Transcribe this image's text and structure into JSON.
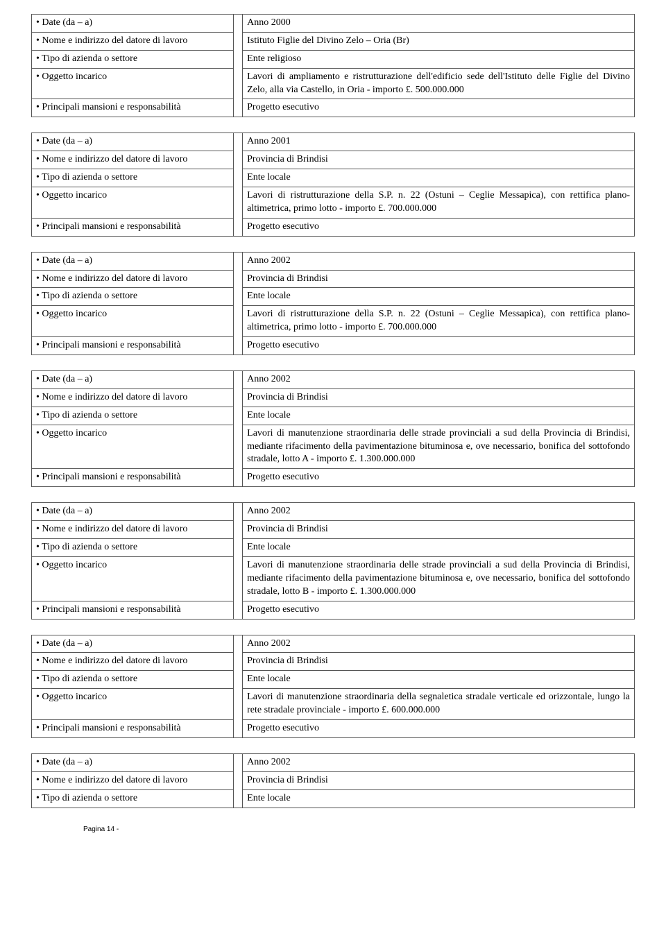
{
  "labels": {
    "date": "• Date (da – a)",
    "employer": " • Nome e indirizzo del datore di lavoro",
    "sector": "• Tipo di azienda o settore",
    "object": "• Oggetto incarico",
    "duties": "• Principali mansioni e responsabilità"
  },
  "blocks": [
    {
      "date": "Anno 2000",
      "employer": "Istituto Figlie del Divino Zelo – Oria (Br)",
      "sector": "Ente religioso",
      "object": "Lavori di ampliamento e ristrutturazione dell'edificio sede dell'Istituto delle Figlie del Divino Zelo, alla via Castello, in Oria - importo £. 500.000.000",
      "duties": "Progetto esecutivo"
    },
    {
      "date": "Anno 2001",
      "employer": "Provincia di Brindisi",
      "sector": "Ente locale",
      "object": "Lavori di ristrutturazione della S.P. n. 22 (Ostuni – Ceglie Messapica), con rettifica plano-altimetrica, primo lotto - importo £. 700.000.000",
      "duties": "Progetto esecutivo"
    },
    {
      "date": "Anno 2002",
      "employer": "Provincia di Brindisi",
      "sector": "Ente locale",
      "object": "Lavori di ristrutturazione della S.P. n. 22 (Ostuni – Ceglie Messapica), con rettifica plano-altimetrica, primo lotto - importo £. 700.000.000",
      "duties": "Progetto esecutivo"
    },
    {
      "date": "Anno 2002",
      "employer": "Provincia di Brindisi",
      "sector": "Ente locale",
      "object": "Lavori di manutenzione straordinaria delle strade provinciali a sud della Provincia di Brindisi, mediante rifacimento della pavimentazione bituminosa e, ove necessario, bonifica del sottofondo stradale, lotto A - importo £. 1.300.000.000",
      "duties": "Progetto esecutivo"
    },
    {
      "date": "Anno 2002",
      "employer": "Provincia di Brindisi",
      "sector": "Ente locale",
      "object": "Lavori di manutenzione straordinaria delle strade provinciali a sud della Provincia di Brindisi, mediante rifacimento della pavimentazione bituminosa e, ove necessario, bonifica del sottofondo stradale, lotto B - importo £. 1.300.000.000",
      "duties": "Progetto esecutivo"
    },
    {
      "date": "Anno 2002",
      "employer": "Provincia di Brindisi",
      "sector": "Ente locale",
      "object": "Lavori di manutenzione straordinaria della segnaletica stradale verticale ed orizzontale, lungo la rete stradale provinciale - importo £. 600.000.000",
      "duties": "Progetto esecutivo"
    },
    {
      "date": "Anno 2002",
      "employer": "Provincia di Brindisi",
      "sector": "Ente locale"
    }
  ],
  "footer": "Pagina 14 -"
}
